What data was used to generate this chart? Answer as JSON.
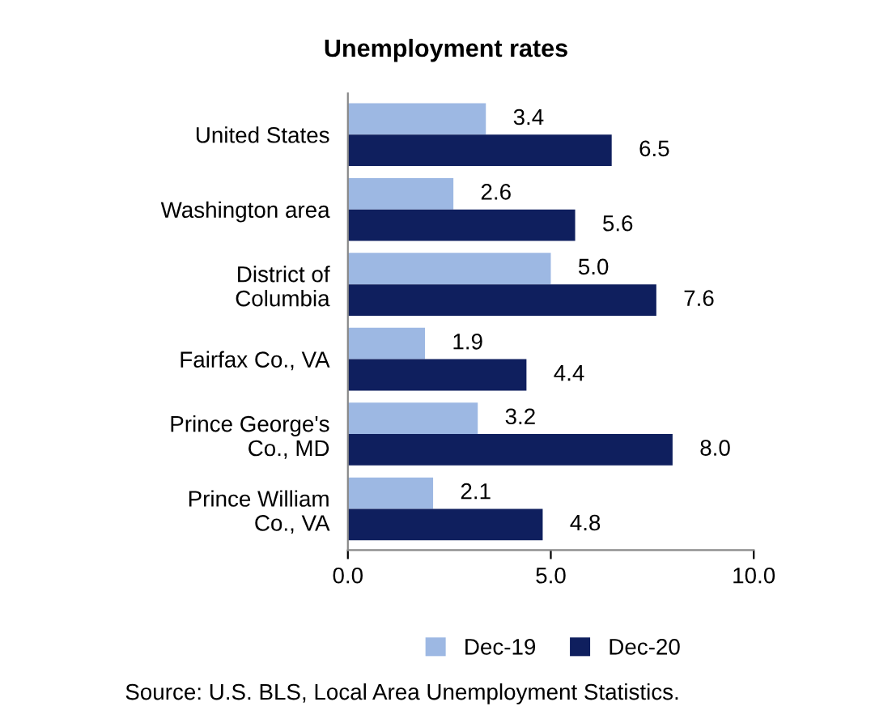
{
  "chart_data": {
    "type": "bar",
    "orientation": "horizontal",
    "title": "Unemployment rates",
    "categories": [
      "United States",
      "Washington area",
      "District of\nColumbia",
      "Fairfax Co., VA",
      "Prince George's\nCo., MD",
      "Prince William\nCo., VA"
    ],
    "series": [
      {
        "name": "Dec-19",
        "color": "#9db8e3",
        "values": [
          3.4,
          2.6,
          5.0,
          1.9,
          3.2,
          2.1
        ],
        "value_labels": [
          "3.4",
          "2.6",
          "5.0",
          "1.9",
          "3.2",
          "2.1"
        ]
      },
      {
        "name": "Dec-20",
        "color": "#0f1f5e",
        "values": [
          6.5,
          5.6,
          7.6,
          4.4,
          8.0,
          4.8
        ],
        "value_labels": [
          "6.5",
          "5.6",
          "7.6",
          "4.4",
          "8.0",
          "4.8"
        ]
      }
    ],
    "xlim": [
      0,
      10
    ],
    "xticks": [
      {
        "value": 0,
        "label": "0.0"
      },
      {
        "value": 5,
        "label": "5.0"
      },
      {
        "value": 10,
        "label": "10.0"
      }
    ],
    "grid": false,
    "legend": "bottom",
    "annotations": [
      "Source: U.S. BLS, Local Area Unemployment Statistics."
    ]
  }
}
